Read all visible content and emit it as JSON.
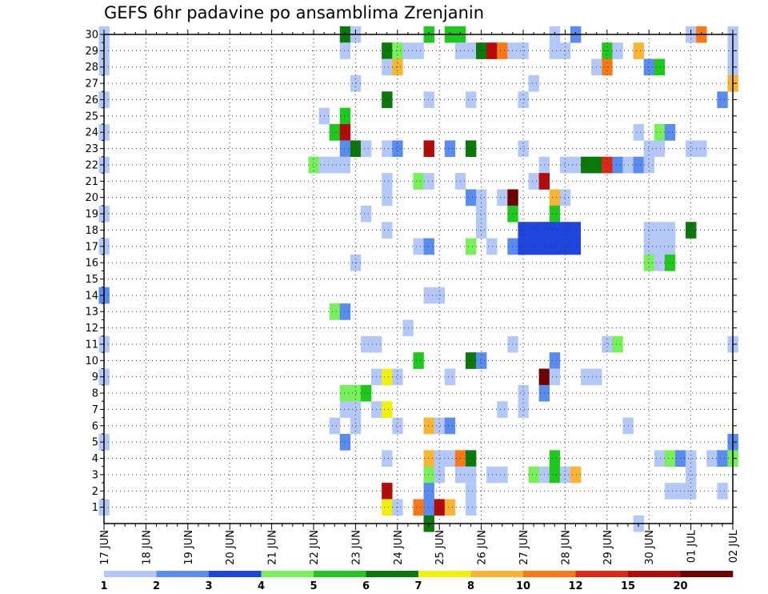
{
  "title": "GEFS 6hr padavine po ansamblima Zrenjanin",
  "chart_data": {
    "type": "heatmap",
    "title": "GEFS 6hr padavine po ansamblima Zrenjanin",
    "xlabel": "",
    "ylabel": "",
    "x_tick_labels": [
      "17 JUN",
      "18 JUN",
      "19 JUN",
      "20 JUN",
      "21 JUN",
      "22 JUN",
      "23 JUN",
      "24 JUN",
      "25 JUN",
      "26 JUN",
      "27 JUN",
      "28 JUN",
      "29 JUN",
      "30 JUN",
      "01 JUL",
      "02 JUL"
    ],
    "y_tick_labels": [
      "1",
      "2",
      "3",
      "4",
      "5",
      "6",
      "7",
      "8",
      "9",
      "10",
      "11",
      "12",
      "13",
      "14",
      "15",
      "16",
      "17",
      "18",
      "19",
      "20",
      "21",
      "22",
      "23",
      "24",
      "25",
      "26",
      "27",
      "28",
      "29",
      "30"
    ],
    "x_range_steps": [
      0,
      60
    ],
    "steps_per_day": 4,
    "y_range": [
      0,
      30
    ],
    "grid": true,
    "colorbar": {
      "levels": [
        "1",
        "2",
        "3",
        "4",
        "5",
        "6",
        "7",
        "8",
        "10",
        "12",
        "15",
        "20"
      ],
      "colors": [
        "#b4c8f8",
        "#5a8cf0",
        "#1e46dc",
        "#78f05a",
        "#1ec81e",
        "#0a780a",
        "#f0f00a",
        "#f8b432",
        "#f87814",
        "#dc2814",
        "#b40a0a",
        "#6e0000"
      ]
    },
    "cells": [
      [
        0,
        30,
        1.5
      ],
      [
        0,
        29,
        1.2
      ],
      [
        0,
        28,
        1.8
      ],
      [
        0,
        26,
        1.8
      ],
      [
        0,
        24,
        1.2
      ],
      [
        0,
        22,
        1.2
      ],
      [
        0,
        19,
        1.2
      ],
      [
        0,
        17,
        1.2
      ],
      [
        0,
        14,
        2.2
      ],
      [
        0,
        11,
        1.2
      ],
      [
        0,
        9,
        1.2
      ],
      [
        0,
        5,
        1.2
      ],
      [
        0,
        1,
        1.2
      ],
      [
        20,
        22,
        4.5
      ],
      [
        21,
        22,
        1.2
      ],
      [
        21,
        25,
        1.2
      ],
      [
        22,
        22,
        1.8
      ],
      [
        22,
        13,
        4.5
      ],
      [
        22,
        24,
        5.5
      ],
      [
        22,
        6,
        1.2
      ],
      [
        23,
        30,
        6.5
      ],
      [
        23,
        29,
        1.8
      ],
      [
        23,
        25,
        5.5
      ],
      [
        23,
        24,
        15.5
      ],
      [
        23,
        23,
        2.5
      ],
      [
        23,
        22,
        1.2
      ],
      [
        23,
        13,
        2.5
      ],
      [
        23,
        8,
        4.5
      ],
      [
        23,
        7,
        1.8
      ],
      [
        23,
        5,
        2.5
      ],
      [
        24,
        30,
        1.8
      ],
      [
        24,
        27,
        1.2
      ],
      [
        24,
        23,
        6.5
      ],
      [
        24,
        16,
        1.2
      ],
      [
        24,
        8,
        4.5
      ],
      [
        24,
        7,
        1.2
      ],
      [
        24,
        6,
        1.2
      ],
      [
        25,
        23,
        1.2
      ],
      [
        25,
        19,
        1.2
      ],
      [
        25,
        11,
        1.2
      ],
      [
        25,
        8,
        5.5
      ],
      [
        26,
        11,
        1.2
      ],
      [
        26,
        9,
        1.8
      ],
      [
        26,
        7,
        1.8
      ],
      [
        27,
        29,
        6.5
      ],
      [
        27,
        28,
        1.8
      ],
      [
        27,
        26,
        6.5
      ],
      [
        27,
        23,
        1.2
      ],
      [
        27,
        21,
        1.2
      ],
      [
        27,
        20,
        1.2
      ],
      [
        27,
        18,
        1.2
      ],
      [
        27,
        9,
        7.5
      ],
      [
        27,
        7,
        7.5
      ],
      [
        27,
        4,
        1.8
      ],
      [
        27,
        2,
        15.5
      ],
      [
        27,
        1,
        7.5
      ],
      [
        28,
        29,
        4.5
      ],
      [
        28,
        28,
        8.5
      ],
      [
        28,
        23,
        2.5
      ],
      [
        28,
        9,
        1.2
      ],
      [
        28,
        6,
        1.2
      ],
      [
        28,
        1,
        1.8
      ],
      [
        29,
        29,
        1.8
      ],
      [
        29,
        12,
        1.2
      ],
      [
        30,
        29,
        1.2
      ],
      [
        30,
        21,
        4.5
      ],
      [
        30,
        17,
        1.8
      ],
      [
        30,
        10,
        5.5
      ],
      [
        30,
        1,
        10.5
      ],
      [
        31,
        30,
        5.5
      ],
      [
        31,
        26,
        1.2
      ],
      [
        31,
        23,
        17.5
      ],
      [
        31,
        21,
        1.2
      ],
      [
        31,
        17,
        2.5
      ],
      [
        31,
        14,
        1.2
      ],
      [
        31,
        6,
        8.5
      ],
      [
        31,
        4,
        8.5
      ],
      [
        31,
        3,
        4.5
      ],
      [
        31,
        2,
        2.5
      ],
      [
        31,
        1,
        2.5
      ],
      [
        31,
        0,
        6.5
      ],
      [
        32,
        14,
        1.8
      ],
      [
        32,
        6,
        1.2
      ],
      [
        32,
        4,
        1.2
      ],
      [
        32,
        3,
        1.8
      ],
      [
        32,
        1,
        17.5
      ],
      [
        33,
        30,
        5.5
      ],
      [
        33,
        23,
        2.5
      ],
      [
        33,
        9,
        1.2
      ],
      [
        33,
        6,
        2.5
      ],
      [
        33,
        4,
        1.8
      ],
      [
        33,
        1,
        8.5
      ],
      [
        34,
        30,
        5.5
      ],
      [
        34,
        29,
        1.2
      ],
      [
        34,
        21,
        1.2
      ],
      [
        34,
        4,
        10.5
      ],
      [
        34,
        3,
        1.2
      ],
      [
        35,
        29,
        1.2
      ],
      [
        35,
        26,
        1.2
      ],
      [
        35,
        23,
        6.5
      ],
      [
        35,
        20,
        2.5
      ],
      [
        35,
        17,
        4.5
      ],
      [
        35,
        10,
        6.5
      ],
      [
        35,
        4,
        6.5
      ],
      [
        35,
        3,
        1.2
      ],
      [
        35,
        2,
        1.2
      ],
      [
        35,
        1,
        1.2
      ],
      [
        36,
        29,
        6.5
      ],
      [
        36,
        20,
        1.8
      ],
      [
        36,
        19,
        1.8
      ],
      [
        36,
        18,
        1.8
      ],
      [
        36,
        10,
        2.5
      ],
      [
        37,
        29,
        17.5
      ],
      [
        37,
        17,
        1.2
      ],
      [
        37,
        3,
        1.8
      ],
      [
        38,
        29,
        10.5
      ],
      [
        38,
        20,
        1.8
      ],
      [
        38,
        7,
        1.2
      ],
      [
        38,
        3,
        1.8
      ],
      [
        39,
        29,
        1.2
      ],
      [
        39,
        20,
        20.5
      ],
      [
        39,
        19,
        5.5
      ],
      [
        39,
        17,
        2.5
      ],
      [
        39,
        11,
        1.8
      ],
      [
        40,
        29,
        1.2
      ],
      [
        40,
        26,
        1.8
      ],
      [
        40,
        23,
        1.8
      ],
      [
        40,
        17,
        2.5
      ],
      [
        40,
        8,
        1.2
      ],
      [
        40,
        7,
        1.8
      ],
      [
        41,
        27,
        1.2
      ],
      [
        41,
        21,
        1.2
      ],
      [
        41,
        17,
        2.5
      ],
      [
        41,
        3,
        4.5
      ],
      [
        42,
        22,
        1.2
      ],
      [
        42,
        21,
        15.5
      ],
      [
        42,
        18,
        2.5
      ],
      [
        42,
        17,
        2.5
      ],
      [
        42,
        9,
        20.5
      ],
      [
        42,
        8,
        2.5
      ],
      [
        42,
        3,
        1.8
      ],
      [
        43,
        30,
        1.2
      ],
      [
        43,
        29,
        1.8
      ],
      [
        43,
        20,
        8.5
      ],
      [
        43,
        19,
        5.5
      ],
      [
        43,
        18,
        4.5
      ],
      [
        43,
        17,
        2.5
      ],
      [
        43,
        10,
        2.5
      ],
      [
        43,
        9,
        1.2
      ],
      [
        43,
        4,
        5.5
      ],
      [
        43,
        3,
        5.5
      ],
      [
        44,
        29,
        1.2
      ],
      [
        44,
        22,
        1.8
      ],
      [
        44,
        20,
        1.8
      ],
      [
        44,
        3,
        1.8
      ],
      [
        45,
        30,
        2.5
      ],
      [
        45,
        22,
        1.8
      ],
      [
        45,
        3,
        8.5
      ],
      [
        46,
        22,
        6.5
      ],
      [
        46,
        9,
        1.2
      ],
      [
        47,
        28,
        1.2
      ],
      [
        47,
        22,
        6.5
      ],
      [
        47,
        9,
        1.2
      ],
      [
        48,
        29,
        5.5
      ],
      [
        48,
        28,
        10.5
      ],
      [
        48,
        22,
        12.5
      ],
      [
        48,
        11,
        1.8
      ],
      [
        49,
        29,
        1.2
      ],
      [
        49,
        22,
        2.5
      ],
      [
        49,
        11,
        4.5
      ],
      [
        50,
        22,
        1.2
      ],
      [
        50,
        6,
        1.2
      ],
      [
        51,
        29,
        8.5
      ],
      [
        51,
        24,
        1.8
      ],
      [
        51,
        22,
        2.5
      ],
      [
        51,
        0,
        1.2
      ],
      [
        52,
        28,
        2.5
      ],
      [
        52,
        23,
        1.2
      ],
      [
        52,
        22,
        1.2
      ],
      [
        52,
        18,
        1.2
      ],
      [
        52,
        17,
        1.2
      ],
      [
        52,
        16,
        4.5
      ],
      [
        53,
        28,
        5.5
      ],
      [
        53,
        24,
        4.5
      ],
      [
        53,
        23,
        1.8
      ],
      [
        53,
        18,
        1.2
      ],
      [
        53,
        17,
        1.2
      ],
      [
        53,
        16,
        1.8
      ],
      [
        53,
        4,
        1.2
      ],
      [
        54,
        24,
        2.5
      ],
      [
        54,
        18,
        1.2
      ],
      [
        54,
        17,
        1.2
      ],
      [
        54,
        16,
        5.5
      ],
      [
        54,
        4,
        4.5
      ],
      [
        54,
        2,
        1.2
      ],
      [
        55,
        2,
        1.2
      ],
      [
        55,
        4,
        2.5
      ],
      [
        56,
        30,
        1.2
      ],
      [
        56,
        23,
        1.2
      ],
      [
        56,
        18,
        6.5
      ],
      [
        56,
        4,
        1.8
      ],
      [
        56,
        3,
        1.2
      ],
      [
        56,
        2,
        1.8
      ],
      [
        57,
        30,
        10.5
      ],
      [
        57,
        23,
        1.2
      ],
      [
        58,
        4,
        1.8
      ],
      [
        59,
        26,
        2.5
      ],
      [
        59,
        4,
        2.5
      ],
      [
        59,
        2,
        1.2
      ],
      [
        60,
        30,
        1.8
      ],
      [
        60,
        29,
        1.2
      ],
      [
        60,
        28,
        1.2
      ],
      [
        60,
        27,
        8.5
      ],
      [
        60,
        11,
        1.2
      ],
      [
        60,
        5,
        2.5
      ],
      [
        60,
        4,
        4.5
      ]
    ],
    "blocks": [
      {
        "x_from": 40,
        "x_to": 45,
        "y": 18,
        "value": 3.5
      },
      {
        "x_from": 40,
        "x_to": 45,
        "y": 17,
        "value": 3.5
      }
    ]
  }
}
